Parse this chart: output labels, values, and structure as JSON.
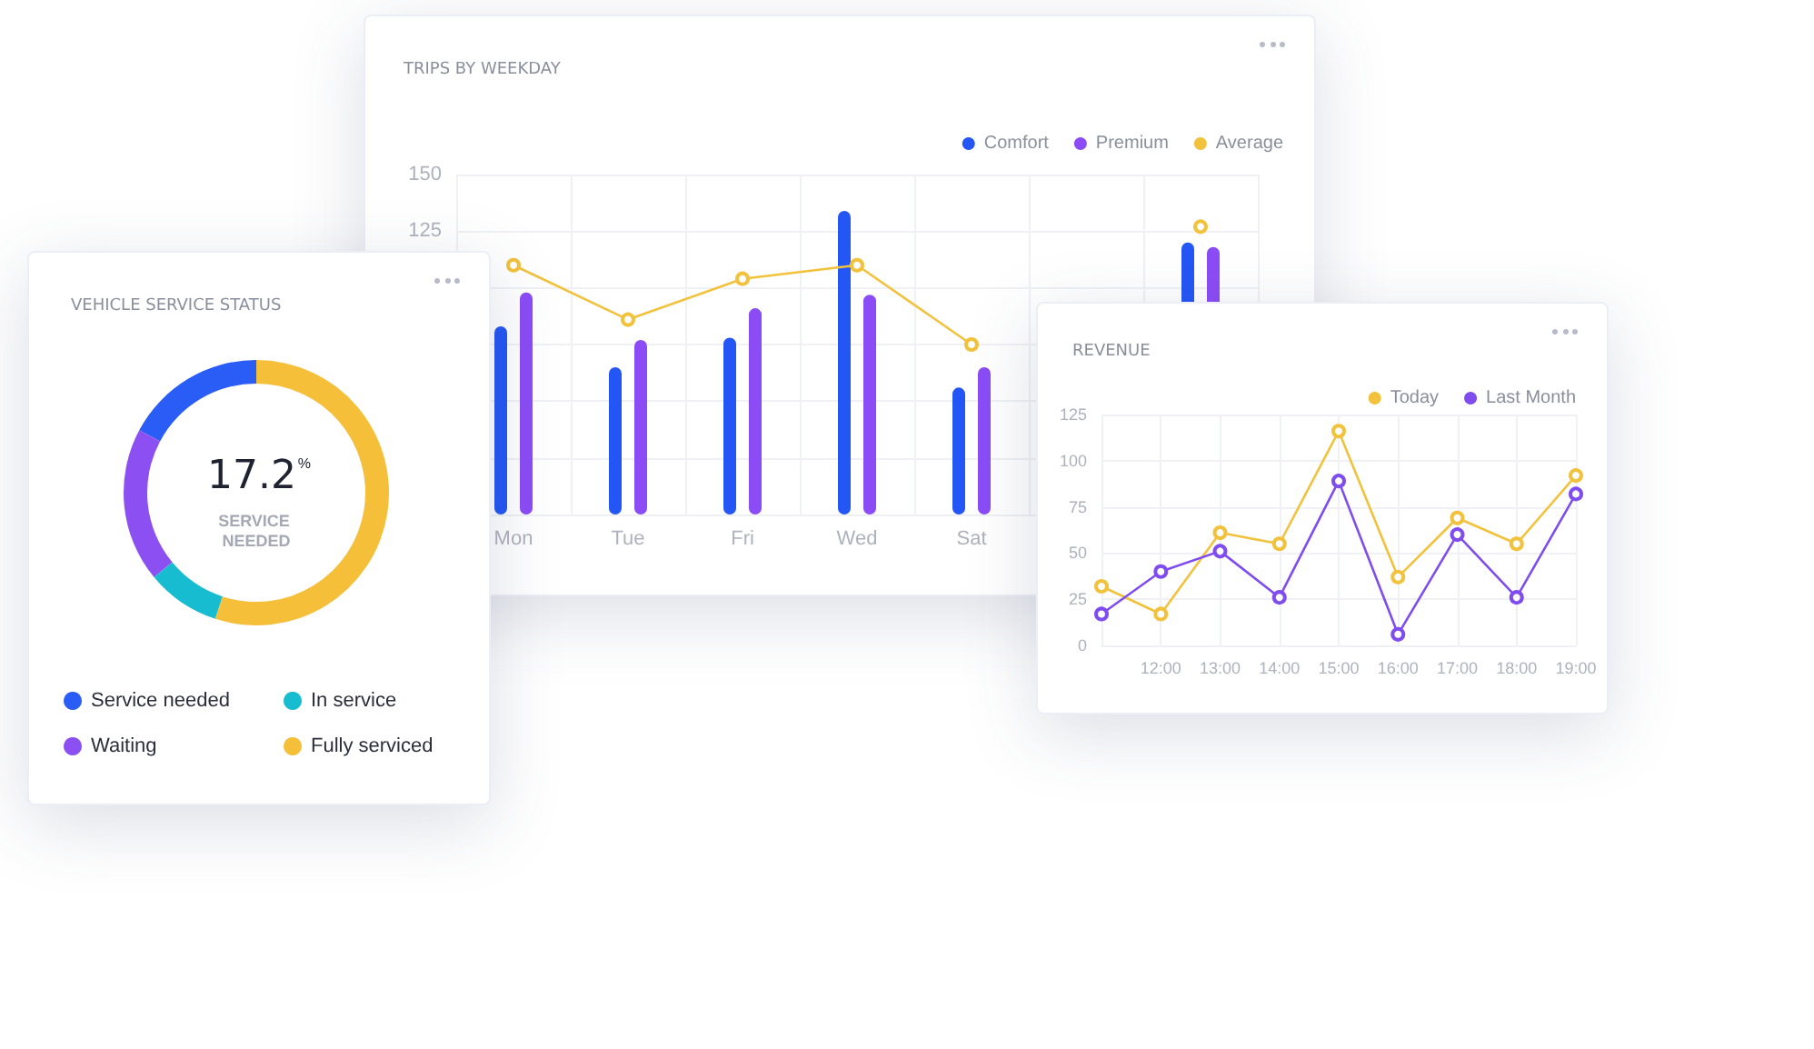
{
  "chart_data": [
    {
      "type": "bar",
      "title": "TRIPS BY WEEKDAY",
      "categories": [
        "Mon",
        "Tue",
        "Fri",
        "Wed",
        "Sat",
        null,
        null
      ],
      "series": [
        {
          "name": "Comfort",
          "color": "#2456f5",
          "values": [
            83,
            65,
            78,
            134,
            56,
            null,
            120
          ]
        },
        {
          "name": "Premium",
          "color": "#8b4cf5",
          "values": [
            98,
            77,
            91,
            97,
            65,
            null,
            118
          ]
        },
        {
          "name": "Average",
          "type": "line",
          "color": "#f2c23c",
          "values": [
            110,
            86,
            104,
            110,
            75,
            null,
            127
          ]
        }
      ],
      "ylim": [
        0,
        150
      ],
      "yticks": [
        {
          "value": 25,
          "label": null
        },
        {
          "value": 50,
          "label": null
        },
        {
          "value": 75,
          "label": null
        },
        {
          "value": 100,
          "label": null
        },
        125,
        150
      ],
      "grid": true,
      "legend": "top right",
      "marker": "circle"
    },
    {
      "type": "donut",
      "title": "VEHICLE SERVICE STATUS",
      "categories": [
        "Service needed",
        "Waiting",
        "In service",
        "Fully serviced"
      ],
      "values": [
        17.2,
        18.8,
        9,
        55
      ],
      "colors": [
        "#2a5cf6",
        "#8c50f2",
        "#17bcd0",
        "#f6bf3a"
      ],
      "annotations": [
        "17.2$^{%}$",
        "SERVICE NEEDED"
      ],
      "legend": "bottom"
    },
    {
      "type": "line",
      "title": "REVENUE",
      "categories": [
        null,
        "12:00",
        "13:00",
        "14:00",
        "15:00",
        "16:00",
        "17:00",
        "18:00",
        "19:00"
      ],
      "series": [
        {
          "name": "Today",
          "color": "#f2c23c",
          "values": [
            32,
            17,
            61,
            55,
            116,
            37,
            69,
            55,
            92
          ]
        },
        {
          "name": "Last Month",
          "color": "#7f4cf0",
          "values": [
            17,
            40,
            51,
            26,
            89,
            6,
            60,
            26,
            82
          ]
        }
      ],
      "ylim": [
        0,
        125
      ],
      "yticks": [
        0,
        25,
        50,
        75,
        100,
        125
      ],
      "grid": true,
      "legend": "top right",
      "marker": "circle"
    }
  ]
}
